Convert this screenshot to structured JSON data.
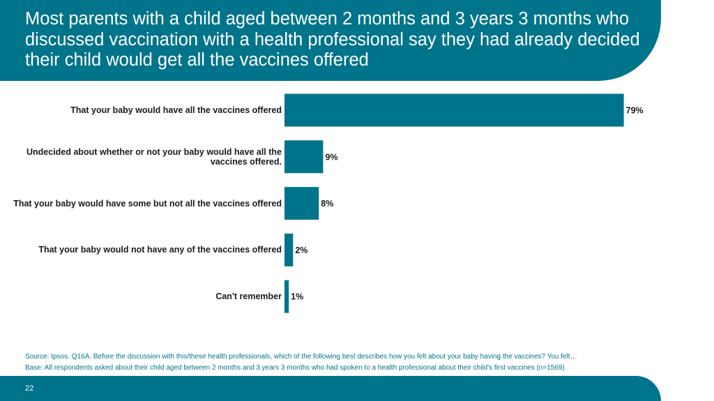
{
  "slide": {
    "title": "Most parents with a child aged between 2 months and 3 years 3 months who discussed vaccination with a health professional say they had already decided their child would get all the vaccines offered",
    "source": "Source: Ipsos. Q16A. Before the discussion with this/these health professionals, which of the following best describes how you felt about your baby having the vaccines? You felt…",
    "base": "Base: All respondents asked about their child aged between 2 months and 3 years 3 months who had spoken to a health professional about their child's first vaccines (n=1569)",
    "page_number": "22"
  },
  "colors": {
    "brand": "#00748A",
    "bar": "#00748A",
    "text": "#1a1a1a"
  },
  "chart_data": {
    "type": "bar",
    "orientation": "horizontal",
    "categories": [
      "That your baby would have all the vaccines offered",
      "Undecided about whether or not your baby would have all the vaccines offered.",
      "That your baby would have some but not all the vaccines offered",
      "That your baby would not have any of the vaccines offered",
      "Can't remember"
    ],
    "values": [
      79,
      9,
      8,
      2,
      1
    ],
    "data_labels": [
      "79%",
      "9%",
      "8%",
      "2%",
      "1%"
    ],
    "unit": "%",
    "xlim": [
      0,
      100
    ],
    "grid": false,
    "legend": "none"
  }
}
